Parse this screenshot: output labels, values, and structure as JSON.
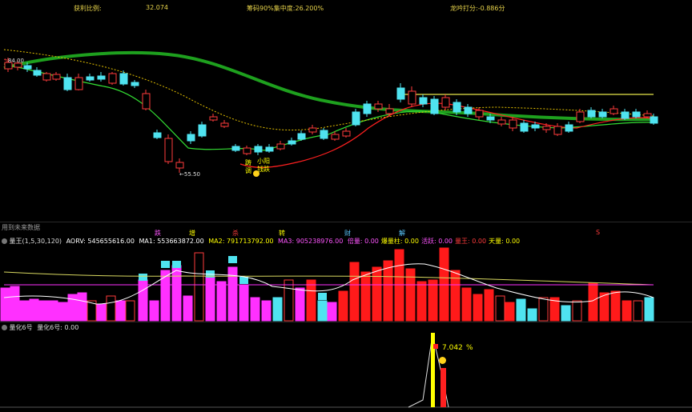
{
  "header": {
    "profit_ratio_label": "获利比例:",
    "profit_ratio_value": "32.074",
    "chip_concentration": "筹码90%集中度:26.200%",
    "dragon_score": "龙吟打分:-0.886分"
  },
  "price_chart": {
    "high_marker": "84.00",
    "low_marker": "55.50",
    "annot_1": "小阳",
    "annot_2": "钱跌",
    "annot_3": "踌",
    "annot_4": "调"
  },
  "signal_row": {
    "note": "用到未来数据",
    "signals": [
      "跌",
      "增",
      "杀",
      "转",
      "财",
      "解",
      "S"
    ],
    "signal_colors": [
      "#ff55ff",
      "#ffff00",
      "#ff3b3b",
      "#ffff00",
      "#5ac8ff",
      "#5ac8ff",
      "#ff3b3b"
    ]
  },
  "volume_panel": {
    "title": "量王(1,5,30,120)",
    "aorv": "AORV: 545655616.00",
    "ma1": "MA1: 553663872.00",
    "ma2": "MA2: 791713792.00",
    "ma3": "MA3: 905238976.00",
    "items": [
      "倍量: 0.00",
      "爆量柱: 0.00",
      "活跃: 0.00",
      "量王: 0.00",
      "天量: 0.00"
    ],
    "item_colors": [
      "#ff55ff",
      "#ffff00",
      "#ff55ff",
      "#ff3b3b",
      "#ffff00"
    ]
  },
  "quant_panel": {
    "title": "量化6号",
    "value_label": "量化6号: 0.00",
    "peak_value": "7.042",
    "percent": "%"
  },
  "colors": {
    "up": "#ff3b3b",
    "down": "#4fe3f0",
    "ma_green": "#1ea01e",
    "ma_red": "#ff2020",
    "dotted": "#e6c200",
    "magenta": "#ff30ff"
  }
}
